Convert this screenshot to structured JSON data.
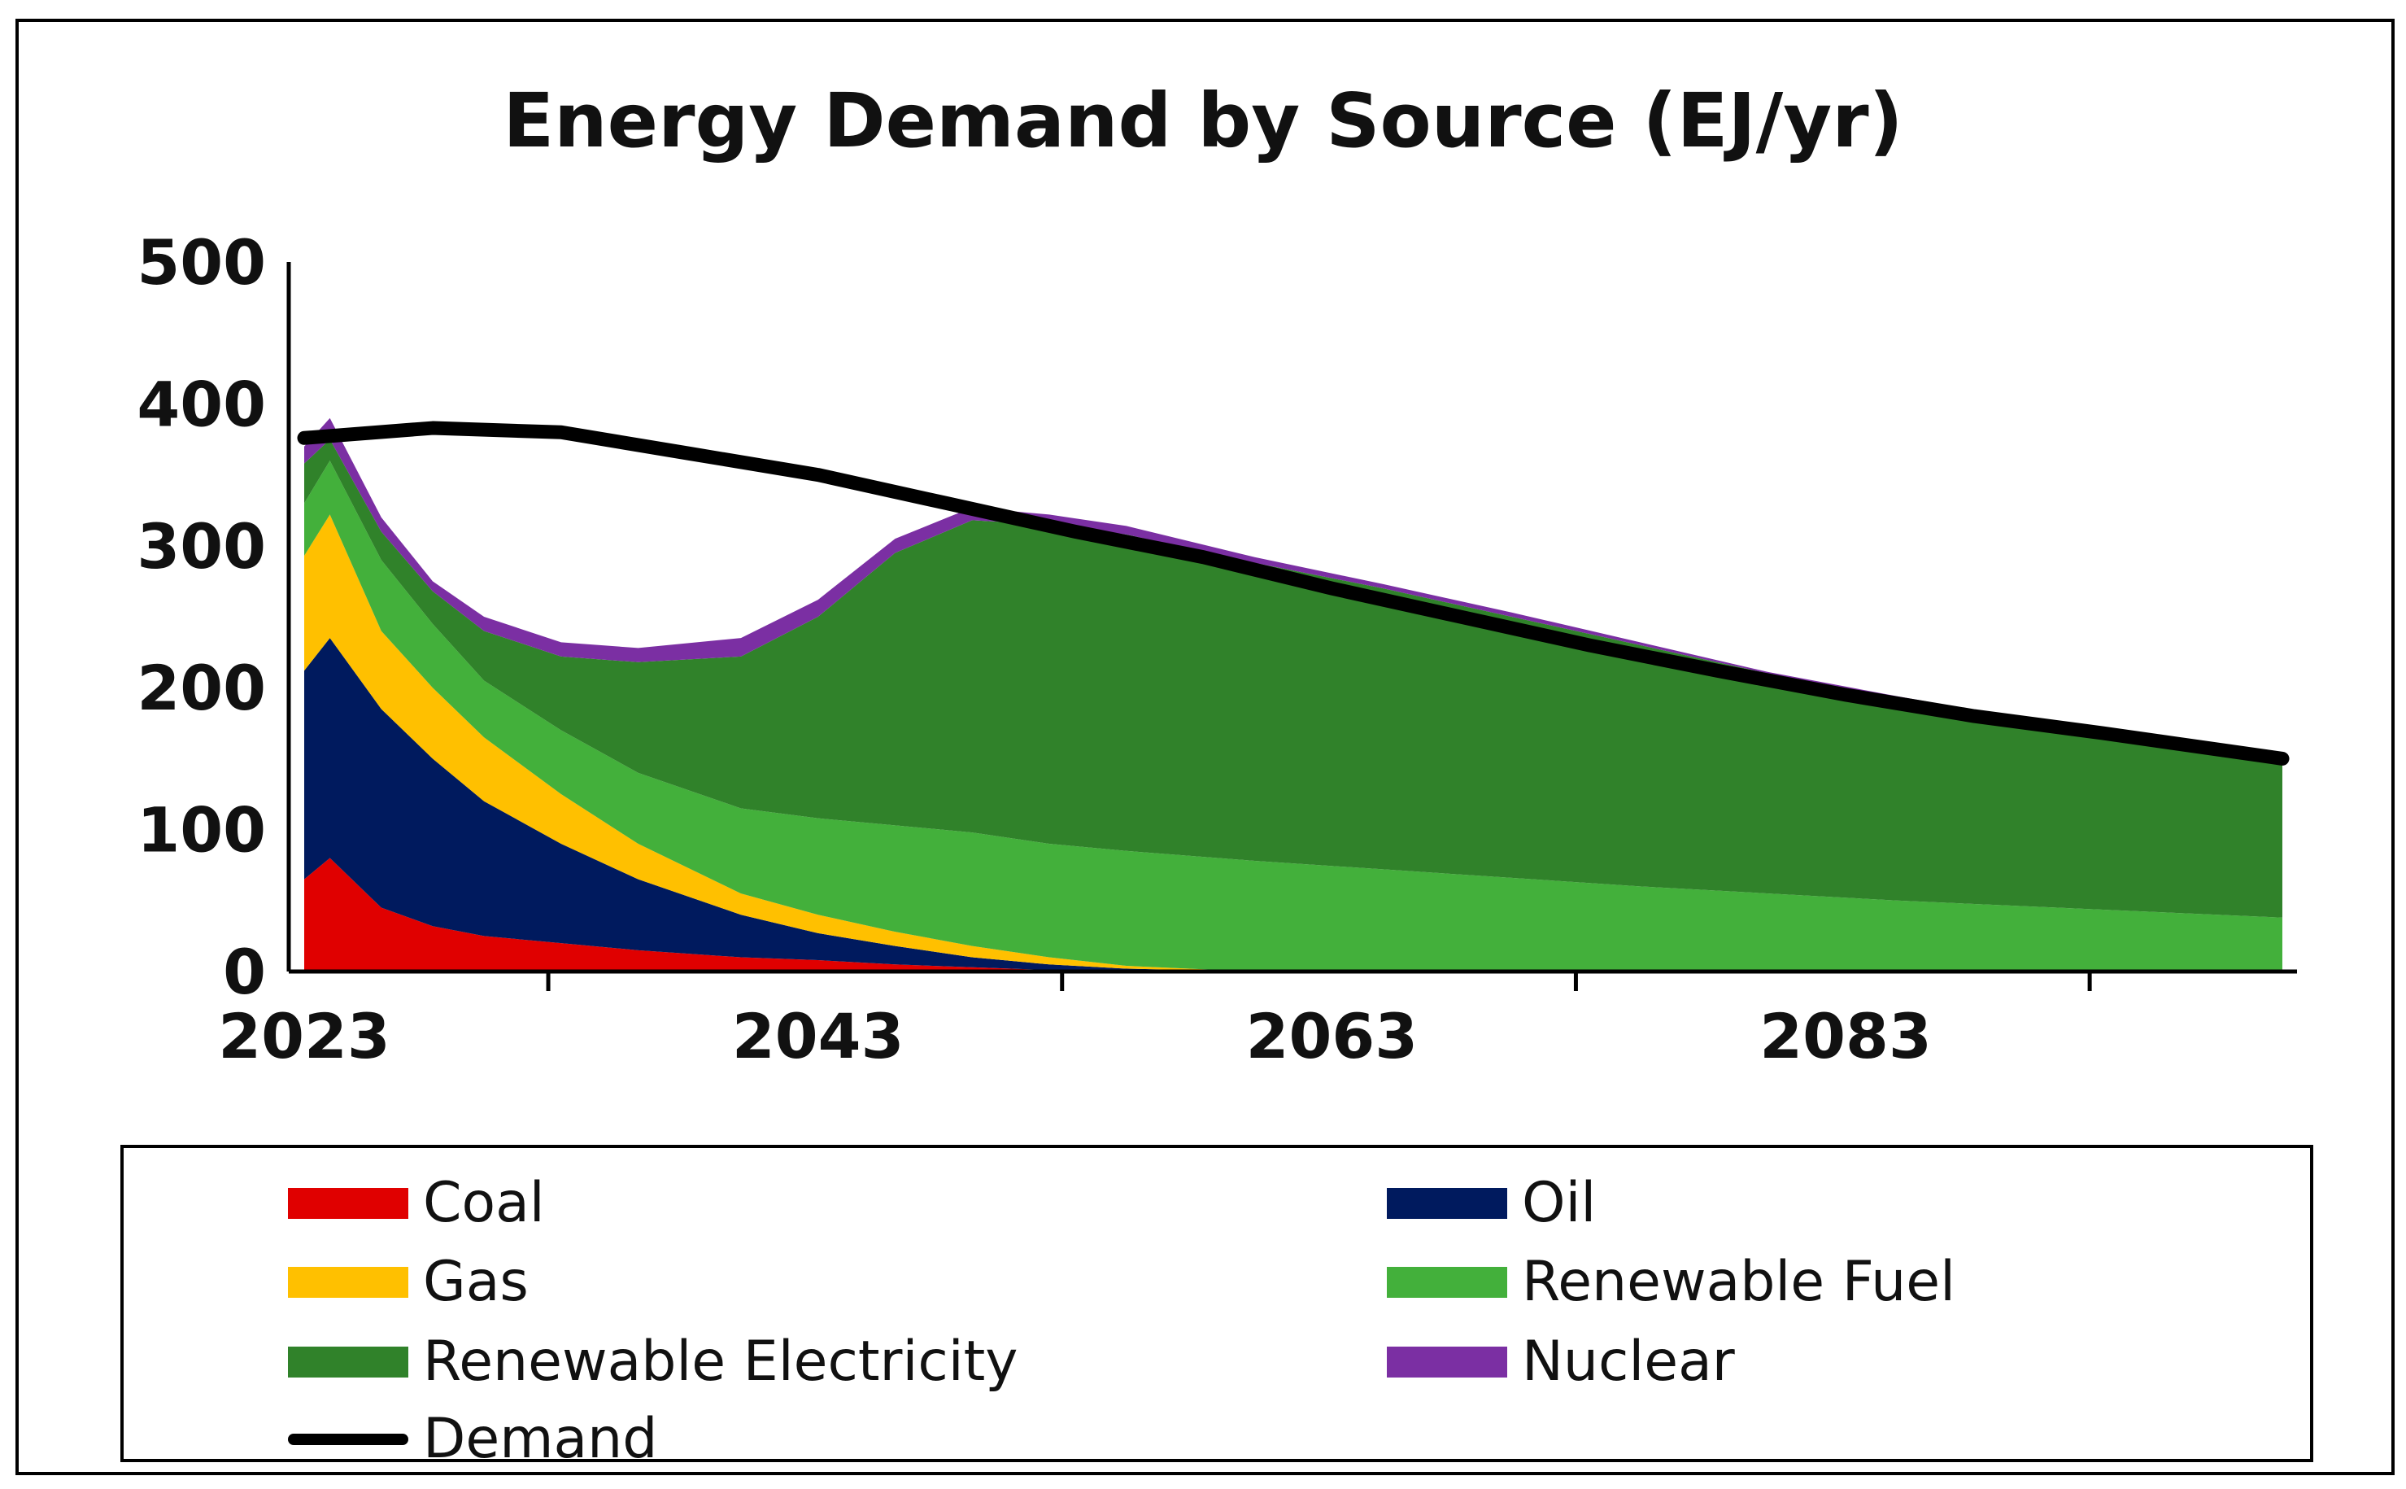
{
  "chart_data": {
    "type": "area",
    "stacked": true,
    "title": "Energy Demand by Source (EJ/yr)",
    "xlabel": "",
    "ylabel": "",
    "ylim": [
      0,
      500
    ],
    "xlim": [
      2023,
      2100
    ],
    "yticks": [
      0,
      100,
      200,
      300,
      400,
      500
    ],
    "xticks": [
      2023,
      2043,
      2063,
      2083
    ],
    "grid": false,
    "legend_position": "bottom",
    "x": [
      2023,
      2024,
      2026,
      2028,
      2030,
      2033,
      2036,
      2040,
      2043,
      2046,
      2049,
      2052,
      2055,
      2060,
      2065,
      2070,
      2075,
      2080,
      2085,
      2090,
      2095,
      2100
    ],
    "series": [
      {
        "name": "Coal",
        "color": "#e00000",
        "values": [
          65,
          80,
          45,
          32,
          25,
          20,
          15,
          10,
          8,
          5,
          3,
          1,
          0,
          0,
          0,
          0,
          0,
          0,
          0,
          0,
          0,
          0
        ]
      },
      {
        "name": "Oil",
        "color": "#001a5e",
        "values": [
          147,
          155,
          140,
          118,
          95,
          70,
          50,
          30,
          19,
          13,
          7,
          4,
          2,
          0,
          0,
          0,
          0,
          0,
          0,
          0,
          0,
          0
        ]
      },
      {
        "name": "Gas",
        "color": "#ffc000",
        "values": [
          81,
          87,
          55,
          50,
          45,
          35,
          25,
          15,
          13,
          10,
          8,
          5,
          2,
          0,
          0,
          0,
          0,
          0,
          0,
          0,
          0,
          0
        ]
      },
      {
        "name": "Renewable Fuel",
        "color": "#43b03b",
        "values": [
          37,
          38,
          50,
          45,
          40,
          45,
          50,
          60,
          68,
          75,
          80,
          80,
          81,
          78,
          72,
          66,
          60,
          55,
          50,
          46,
          42,
          38
        ]
      },
      {
        "name": "Renewable Electricity",
        "color": "#30822a",
        "values": [
          28,
          15,
          20,
          23,
          35,
          52,
          78,
          107,
          142,
          192,
          220,
          225,
          223,
          210,
          198,
          184,
          170,
          155,
          143,
          132,
          123,
          114
        ]
      },
      {
        "name": "Nuclear",
        "color": "#7b2fa3",
        "values": [
          12,
          15,
          10,
          7,
          10,
          10,
          10,
          13,
          12,
          10,
          9,
          7,
          6,
          4,
          3,
          3,
          2,
          1,
          1,
          0,
          0,
          0
        ]
      }
    ],
    "line": {
      "name": "Demand",
      "color": "#000000",
      "x": [
        2023,
        2028,
        2033,
        2038,
        2043,
        2048,
        2053,
        2058,
        2063,
        2068,
        2073,
        2078,
        2083,
        2088,
        2093,
        2100
      ],
      "values": [
        376,
        383,
        380,
        365,
        350,
        330,
        310,
        292,
        270,
        250,
        230,
        212,
        195,
        180,
        168,
        150
      ]
    }
  }
}
